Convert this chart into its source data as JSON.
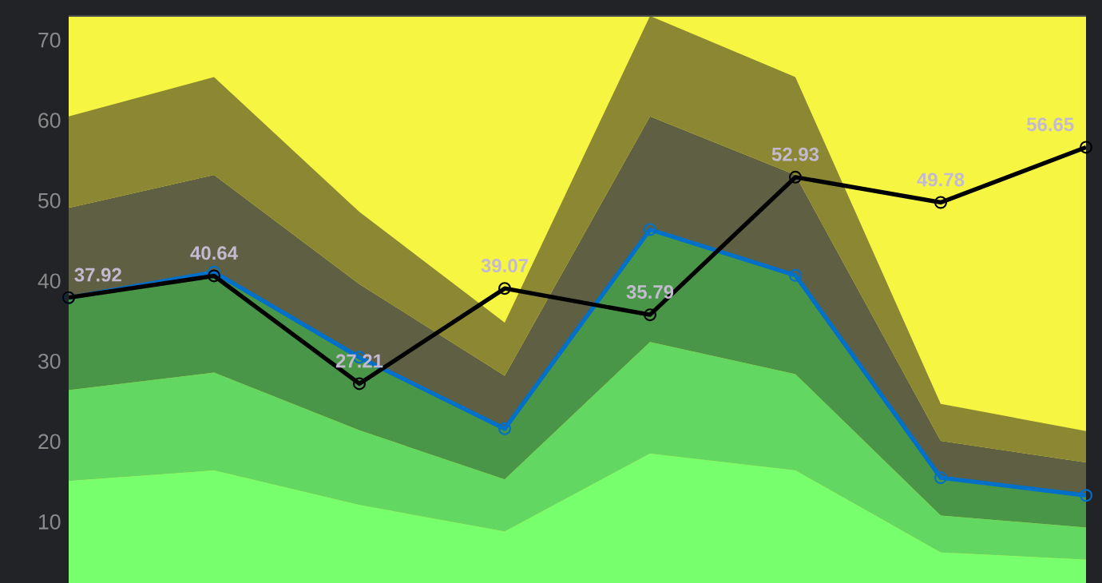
{
  "chart_data": {
    "type": "area",
    "stacked": true,
    "categories": [
      null,
      null,
      null,
      null,
      null,
      null,
      null,
      null
    ],
    "ylim": [
      0,
      73
    ],
    "yticks": [
      10,
      20,
      30,
      40,
      50,
      60,
      70
    ],
    "tick_labels": "y",
    "grid": false,
    "series": [
      {
        "color": "#78ff6e",
        "values": [
          15.1,
          16.4,
          12.1,
          8.8,
          18.5,
          16.4,
          6.2,
          5.3
        ]
      },
      {
        "color": "#62d862",
        "values": [
          11.3,
          12.2,
          9.3,
          6.5,
          13.9,
          12.0,
          4.6,
          4.0
        ]
      },
      {
        "color": "#4a9648",
        "values": [
          11.5,
          12.5,
          9.1,
          6.3,
          14.0,
          12.3,
          4.7,
          4.0
        ]
      },
      {
        "color": "#5f5f44",
        "values": [
          11.2,
          12.1,
          9.1,
          6.6,
          14.1,
          12.5,
          4.6,
          4.1
        ]
      },
      {
        "color": "#8b8733",
        "values": [
          11.4,
          12.2,
          9.0,
          6.6,
          12.5,
          12.2,
          4.6,
          3.9
        ]
      },
      {
        "type": "line",
        "color": "#0070c8",
        "marker": "circle",
        "values": [
          37.9,
          41.1,
          30.5,
          21.6,
          46.4,
          40.7,
          15.5,
          13.3
        ]
      },
      {
        "type": "line",
        "color": "#000000",
        "marker": "circle",
        "values": [
          37.92,
          40.64,
          27.21,
          39.07,
          35.79,
          52.93,
          49.78,
          56.65
        ],
        "value_labels": [
          "37.92",
          "40.64",
          "27.21",
          "39.07",
          "35.79",
          "52.93",
          "49.78",
          "56.65"
        ]
      }
    ]
  }
}
